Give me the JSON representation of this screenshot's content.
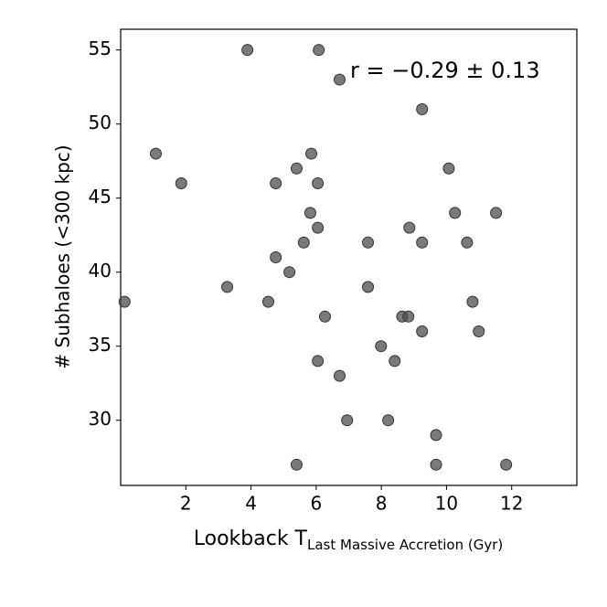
{
  "chart_data": {
    "type": "scatter",
    "xlabel": "Lookback T",
    "xlabel_sub": "Last Massive Accretion (Gyr)",
    "ylabel": "# Subhaloes (<300 kpc)",
    "annotation": "r = −0.29 ± 0.13",
    "color": "#4d4d4d",
    "grid": false,
    "xlim": [
      0,
      14
    ],
    "ylim": [
      25.6,
      56.4
    ],
    "xticks": [
      2,
      4,
      6,
      8,
      10,
      12
    ],
    "yticks": [
      30,
      35,
      40,
      45,
      50,
      55
    ],
    "x": [
      0.12,
      1.08,
      1.86,
      3.27,
      3.89,
      4.53,
      4.76,
      4.76,
      5.18,
      5.4,
      5.4,
      5.62,
      5.82,
      5.85,
      6.05,
      6.05,
      6.05,
      6.08,
      6.27,
      6.72,
      6.72,
      6.95,
      7.59,
      7.59,
      7.99,
      8.21,
      8.41,
      8.64,
      8.83,
      8.86,
      9.25,
      9.25,
      9.25,
      9.68,
      9.68,
      10.07,
      10.26,
      10.63,
      10.8,
      10.99,
      11.52,
      11.83
    ],
    "values": [
      38,
      48,
      46,
      39,
      55,
      38,
      41,
      46,
      40,
      47,
      27,
      42,
      44,
      48,
      43,
      46,
      34,
      55,
      37,
      33,
      53,
      30,
      39,
      42,
      35,
      30,
      34,
      37,
      37,
      43,
      51,
      42,
      36,
      29,
      27,
      47,
      44,
      42,
      38,
      36,
      44,
      27
    ]
  }
}
